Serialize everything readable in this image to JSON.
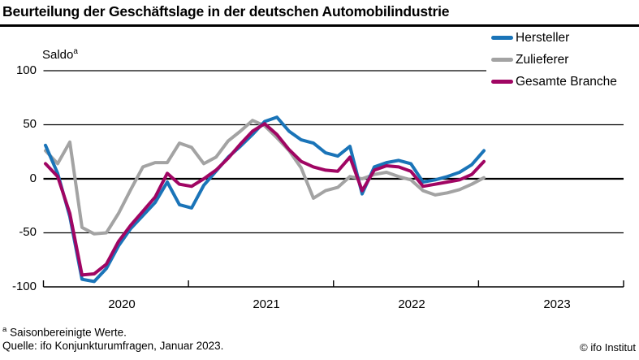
{
  "title": "Beurteilung der Geschäftslage in der deutschen Automobilindustrie",
  "saldo": {
    "text": "Saldo",
    "sup": "a"
  },
  "legend": [
    {
      "label": "Hersteller"
    },
    {
      "label": "Zulieferer"
    },
    {
      "label": "Gesamte Branche"
    }
  ],
  "footnotes": {
    "sup": "a",
    "note": "Saisonbereinigte Werte.",
    "source": "Quelle: ifo Konjunkturumfragen, Januar 2023.",
    "copyright": "© ifo Institut"
  },
  "chart_data": {
    "type": "line",
    "title": "Beurteilung der Geschäftslage in der deutschen Automobilindustrie",
    "ylabel": "Saldo (saisonbereinigt)",
    "x_unit": "month",
    "x": [
      "2020-01",
      "2020-02",
      "2020-03",
      "2020-04",
      "2020-05",
      "2020-06",
      "2020-07",
      "2020-08",
      "2020-09",
      "2020-10",
      "2020-11",
      "2020-12",
      "2021-01",
      "2021-02",
      "2021-03",
      "2021-04",
      "2021-05",
      "2021-06",
      "2021-07",
      "2021-08",
      "2021-09",
      "2021-10",
      "2021-11",
      "2021-12",
      "2022-01",
      "2022-02",
      "2022-03",
      "2022-04",
      "2022-05",
      "2022-06",
      "2022-07",
      "2022-08",
      "2022-09",
      "2022-10",
      "2022-11",
      "2022-12",
      "2023-01"
    ],
    "x_year_labels": [
      "2020",
      "2021",
      "2022",
      "2023"
    ],
    "y_ticks": [
      100,
      50,
      0,
      -50,
      -100
    ],
    "ylim": [
      -100,
      110
    ],
    "grid": "horizontal",
    "legend_position": "top-right",
    "z_order": [
      1,
      0,
      2
    ],
    "series": [
      {
        "name": "Hersteller",
        "color": "#1a74b8",
        "values": [
          31,
          5,
          -35,
          -93,
          -95,
          -83,
          -62,
          -46,
          -34,
          -22,
          -3,
          -24,
          -27,
          -6,
          7,
          20,
          30,
          41,
          53,
          57,
          44,
          36,
          33,
          24,
          21,
          30,
          -14,
          11,
          15,
          17,
          14,
          -3,
          -1,
          2,
          6,
          13,
          26
        ]
      },
      {
        "name": "Zulieferer",
        "color": "#a3a3a3",
        "values": [
          26,
          14,
          34,
          -45,
          -51,
          -50,
          -32,
          -10,
          11,
          15,
          15,
          33,
          29,
          14,
          20,
          35,
          44,
          54,
          49,
          38,
          26,
          10,
          -18,
          -11,
          -8,
          2,
          0,
          4,
          6,
          2,
          -1,
          -11,
          -15,
          -13,
          -10,
          -5,
          1
        ]
      },
      {
        "name": "Gesamte Branche",
        "color": "#a00563",
        "values": [
          14,
          2,
          -32,
          -89,
          -88,
          -79,
          -58,
          -43,
          -30,
          -17,
          5,
          -5,
          -7,
          0,
          8,
          19,
          32,
          44,
          51,
          41,
          27,
          16,
          11,
          8,
          7,
          20,
          -11,
          8,
          12,
          11,
          7,
          -7,
          -5,
          -3,
          -1,
          4,
          16
        ]
      }
    ]
  }
}
